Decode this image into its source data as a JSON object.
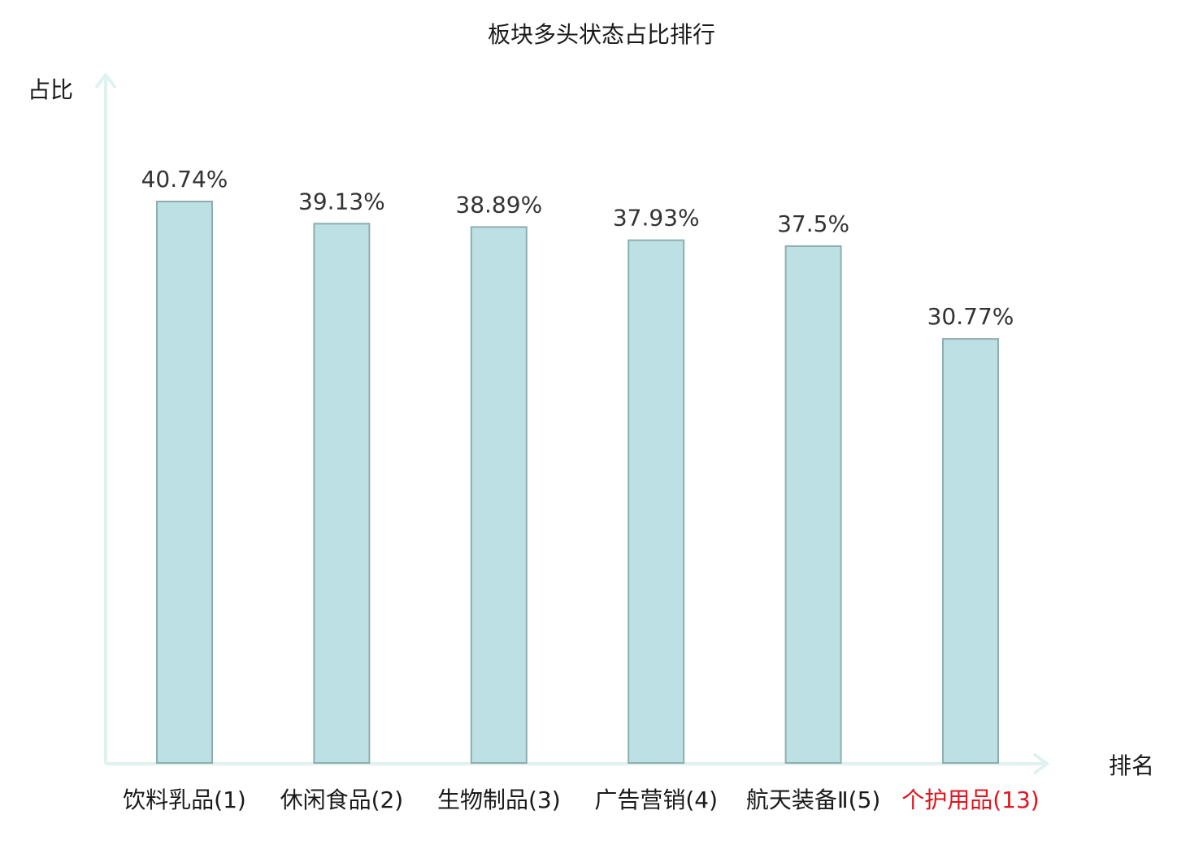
{
  "chart_data": {
    "type": "bar",
    "title": "板块多头状态占比排行",
    "ylabel": "占比",
    "xlabel": "排名",
    "categories": [
      "饮料乳品(1)",
      "休闲食品(2)",
      "生物制品(3)",
      "广告营销(4)",
      "航天装备Ⅱ(5)",
      "个护用品(13)"
    ],
    "values": [
      40.74,
      39.13,
      38.89,
      37.93,
      37.5,
      30.77
    ],
    "value_labels": [
      "40.74%",
      "39.13%",
      "38.89%",
      "37.93%",
      "37.5%",
      "30.77%"
    ],
    "highlight_index": 5,
    "ylim": [
      0,
      41.8
    ],
    "grid": false,
    "legend": "none",
    "colors": {
      "bar": "#bce0e3",
      "bar_stroke": "#8fadaf",
      "axis": "#dff2ef",
      "highlight_text": "#e0141e"
    }
  }
}
